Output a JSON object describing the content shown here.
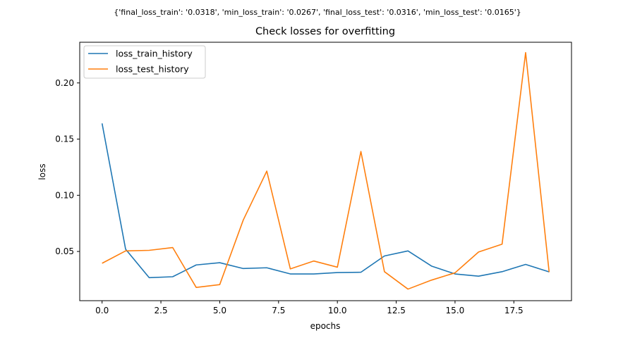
{
  "chart_data": {
    "type": "line",
    "suptitle": "{'final_loss_train': '0.0318', 'min_loss_train': '0.0267', 'final_loss_test': '0.0316', 'min_loss_test': '0.0165'}",
    "title": "Check losses for overfitting",
    "xlabel": "epochs",
    "ylabel": "loss",
    "xlim": [
      -0.95,
      19.95
    ],
    "ylim": [
      0.0062,
      0.2362
    ],
    "xticks": [
      0.0,
      2.5,
      5.0,
      7.5,
      10.0,
      12.5,
      15.0,
      17.5
    ],
    "xtick_labels": [
      "0.0",
      "2.5",
      "5.0",
      "7.5",
      "10.0",
      "12.5",
      "15.0",
      "17.5"
    ],
    "yticks": [
      0.05,
      0.1,
      0.15,
      0.2
    ],
    "ytick_labels": [
      "0.05",
      "0.10",
      "0.15",
      "0.20"
    ],
    "grid": false,
    "legend_position": "top-left",
    "x": [
      0,
      1,
      2,
      3,
      4,
      5,
      6,
      7,
      8,
      9,
      10,
      11,
      12,
      13,
      14,
      15,
      16,
      17,
      18,
      19
    ],
    "series": [
      {
        "name": "loss_train_history",
        "color": "#1f77b4",
        "values": [
          0.164,
          0.052,
          0.0267,
          0.0275,
          0.038,
          0.04,
          0.0348,
          0.0355,
          0.03,
          0.03,
          0.0312,
          0.0315,
          0.046,
          0.0505,
          0.037,
          0.03,
          0.028,
          0.032,
          0.0385,
          0.0318
        ]
      },
      {
        "name": "loss_test_history",
        "color": "#ff7f0e",
        "values": [
          0.0395,
          0.0505,
          0.051,
          0.0535,
          0.018,
          0.0205,
          0.078,
          0.1215,
          0.0345,
          0.0415,
          0.036,
          0.139,
          0.032,
          0.0165,
          0.0245,
          0.031,
          0.0495,
          0.0565,
          0.227,
          0.0316
        ]
      }
    ]
  }
}
